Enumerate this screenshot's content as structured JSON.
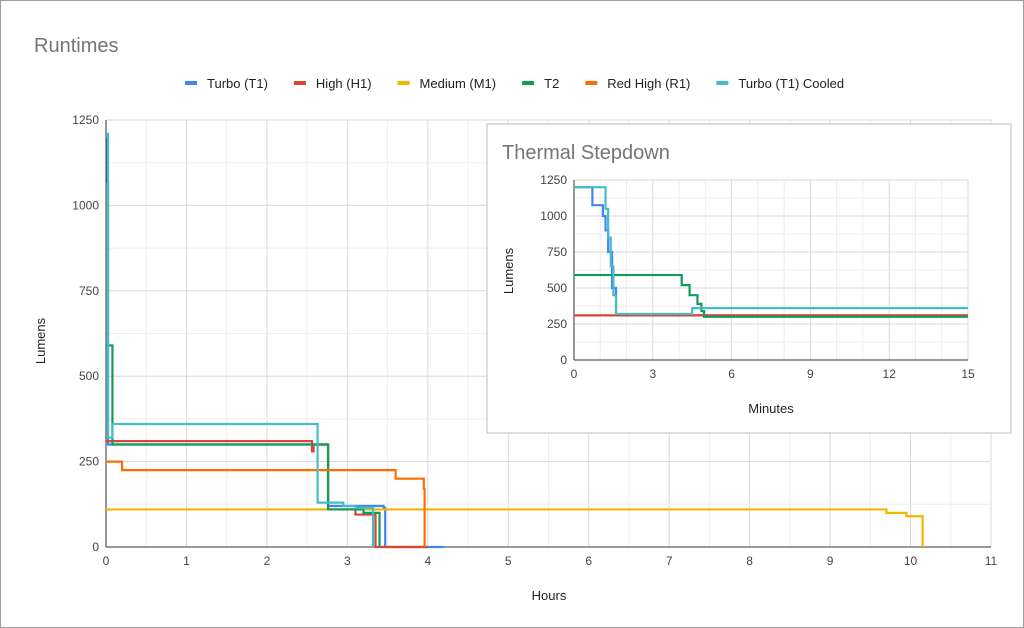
{
  "chart_data": [
    {
      "type": "line",
      "title": "Runtimes",
      "xlabel": "Hours",
      "ylabel": "Lumens",
      "xlim": [
        0,
        11
      ],
      "ylim": [
        0,
        1250
      ],
      "xticks": [
        "0",
        "1",
        "2",
        "3",
        "4",
        "5",
        "6",
        "7",
        "8",
        "9",
        "10",
        "11"
      ],
      "yticks": [
        "0",
        "250",
        "500",
        "750",
        "1000",
        "1250"
      ],
      "grid": true,
      "legend": "top",
      "series": [
        {
          "name": "Turbo (T1)",
          "color": "#4285f4",
          "points": [
            [
              0,
              1200
            ],
            [
              0.02,
              1070
            ],
            [
              0.025,
              300
            ],
            [
              2.75,
              300
            ],
            [
              2.76,
              120
            ],
            [
              3.45,
              115
            ],
            [
              3.47,
              0
            ],
            [
              4.2,
              0
            ]
          ]
        },
        {
          "name": "High (H1)",
          "color": "#db4437",
          "points": [
            [
              0,
              310
            ],
            [
              2.55,
              310
            ],
            [
              2.56,
              280
            ],
            [
              2.58,
              300
            ],
            [
              2.76,
              110
            ],
            [
              3.1,
              95
            ],
            [
              3.35,
              0
            ],
            [
              4.0,
              0
            ]
          ]
        },
        {
          "name": "Medium (M1)",
          "color": "#f4b400",
          "points": [
            [
              0,
              110
            ],
            [
              9.7,
              100
            ],
            [
              9.95,
              90
            ],
            [
              10.15,
              0
            ]
          ]
        },
        {
          "name": "T2",
          "color": "#0f9d58",
          "points": [
            [
              0,
              590
            ],
            [
              0.08,
              300
            ],
            [
              2.76,
              110
            ],
            [
              3.2,
              100
            ],
            [
              3.4,
              0
            ]
          ]
        },
        {
          "name": "Red High (R1)",
          "color": "#ff6d01",
          "points": [
            [
              0,
              250
            ],
            [
              0.2,
              225
            ],
            [
              3.6,
              200
            ],
            [
              3.95,
              170
            ],
            [
              3.96,
              0
            ]
          ]
        },
        {
          "name": "Turbo (T1) Cooled",
          "color": "#46bdc6",
          "points": [
            [
              0,
              1210
            ],
            [
              0.025,
              320
            ],
            [
              0.08,
              360
            ],
            [
              2.63,
              130
            ],
            [
              2.95,
              120
            ],
            [
              3.1,
              115
            ],
            [
              3.32,
              0
            ]
          ]
        }
      ]
    },
    {
      "type": "line",
      "title": "Thermal Stepdown",
      "xlabel": "Minutes",
      "ylabel": "Lumens",
      "xlim": [
        0,
        15
      ],
      "ylim": [
        0,
        1250
      ],
      "xticks": [
        "0",
        "3",
        "6",
        "9",
        "12",
        "15"
      ],
      "yticks": [
        "0",
        "250",
        "500",
        "750",
        "1000",
        "1250"
      ],
      "grid": true,
      "series": [
        {
          "name": "Turbo (T1)",
          "color": "#4285f4",
          "points": [
            [
              0,
              1200
            ],
            [
              0.7,
              1075
            ],
            [
              1.1,
              1000
            ],
            [
              1.2,
              900
            ],
            [
              1.3,
              750
            ],
            [
              1.45,
              500
            ],
            [
              1.6,
              310
            ],
            [
              15,
              310
            ]
          ]
        },
        {
          "name": "High (H1)",
          "color": "#db4437",
          "points": [
            [
              0,
              310
            ],
            [
              15,
              310
            ]
          ]
        },
        {
          "name": "T2",
          "color": "#0f9d58",
          "points": [
            [
              0,
              590
            ],
            [
              4.1,
              520
            ],
            [
              4.4,
              450
            ],
            [
              4.7,
              390
            ],
            [
              4.85,
              340
            ],
            [
              4.95,
              300
            ],
            [
              15,
              300
            ]
          ]
        },
        {
          "name": "Turbo (T1) Cooled",
          "color": "#46bdc6",
          "points": [
            [
              0,
              1200
            ],
            [
              1.1,
              1200
            ],
            [
              1.2,
              1050
            ],
            [
              1.3,
              850
            ],
            [
              1.4,
              650
            ],
            [
              1.5,
              450
            ],
            [
              1.6,
              320
            ],
            [
              4.5,
              360
            ],
            [
              15,
              360
            ]
          ]
        }
      ]
    }
  ]
}
